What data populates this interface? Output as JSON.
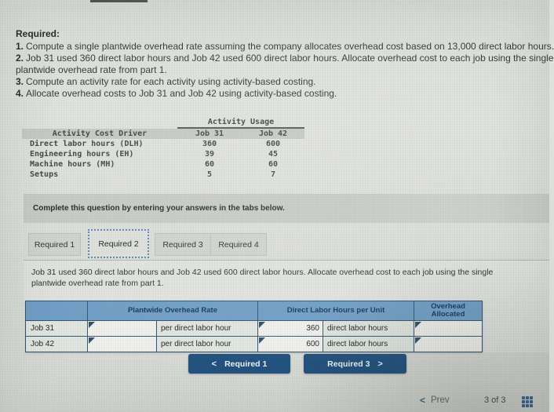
{
  "colors": {
    "table_header_blue": "#6f9ec7",
    "border_navy": "#2e4d6b",
    "button_navy": "#1d4e7d",
    "tab_focus_border": "#5b87b8",
    "grid_icon_blue": "#2f5f9e",
    "instruction_band_gray": "#c7cac5"
  },
  "required": {
    "heading": "Required:",
    "items": [
      {
        "num": "1.",
        "text": "Compute a single plantwide overhead rate assuming the company allocates overhead cost based on 13,000 direct labor hours."
      },
      {
        "num": "2.",
        "text": "Job 31 used 360 direct labor hours and Job 42 used 600 direct labor hours. Allocate overhead cost to each job using the single"
      },
      {
        "num": "",
        "text": "plantwide overhead rate from part 1."
      },
      {
        "num": "3.",
        "text": "Compute an activity rate for each activity using activity-based costing."
      },
      {
        "num": "4.",
        "text": "Allocate overhead costs to Job 31 and Job 42 using activity-based costing."
      }
    ]
  },
  "activity": {
    "usage_header": "Activity Usage",
    "cost_driver_header": "Activity Cost Driver",
    "job31_header": "Job 31",
    "job42_header": "Job 42",
    "rows": [
      {
        "label": "Direct labor hours (DLH)",
        "job31": "360",
        "job42": "600"
      },
      {
        "label": "Engineering hours (EH)",
        "job31": "39",
        "job42": "45"
      },
      {
        "label": "Machine hours (MH)",
        "job31": "60",
        "job42": "60"
      },
      {
        "label": "Setups",
        "job31": "5",
        "job42": "7"
      }
    ]
  },
  "instruction_band": {
    "text": "Complete this question by entering your answers in the tabs below."
  },
  "tabs": {
    "items": [
      "Required 1",
      "Required 2",
      "Required 3",
      "Required 4"
    ],
    "active": "Required 2"
  },
  "panel": {
    "line1": "Job 31 used 360 direct labor hours and Job 42 used 600 direct labor hours. Allocate overhead cost to each job using the single",
    "line2": "plantwide overhead rate from part 1."
  },
  "answer_table": {
    "headers": {
      "plantwide": "Plantwide Overhead Rate",
      "dlh": "Direct Labor Hours per Unit",
      "overhead": "Overhead Allocated"
    },
    "rows": [
      {
        "label": "Job 31",
        "rate_value": "",
        "rate_unit": "per direct labor hour",
        "dlh_value": "360",
        "dlh_unit": "direct labor hours",
        "overhead_value": ""
      },
      {
        "label": "Job 42",
        "rate_value": "",
        "rate_unit": "per direct labor hour",
        "dlh_value": "600",
        "dlh_unit": "direct labor hours",
        "overhead_value": ""
      }
    ]
  },
  "nav_buttons": {
    "prev": {
      "chevron": "<",
      "label": "Required 1"
    },
    "next": {
      "label": "Required 3",
      "chevron": ">"
    }
  },
  "footer": {
    "prev_chevron": "<",
    "prev_label": "Prev",
    "page_indicator": "3 of 3"
  }
}
